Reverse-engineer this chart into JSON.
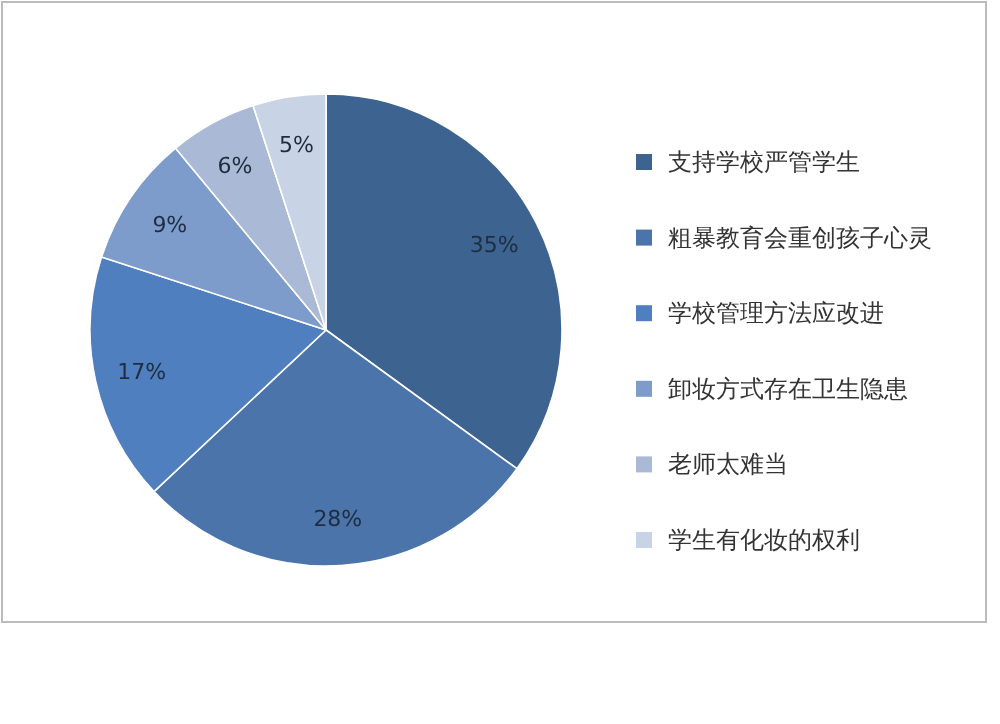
{
  "chart_data": {
    "type": "pie",
    "categories": [
      "支持学校严管学生",
      "粗暴教育会重创孩子心灵",
      "学校管理方法应改进",
      "卸妆方式存在卫生隐患",
      "老师太难当",
      "学生有化妆的权利"
    ],
    "values": [
      35,
      28,
      17,
      9,
      6,
      5
    ],
    "colors": [
      "#3d6391",
      "#4a74aa",
      "#4f7fbf",
      "#7d9ccb",
      "#a9b9d6",
      "#c9d3e6"
    ],
    "value_labels": [
      "35%",
      "28%",
      "17%",
      "9%",
      "6%",
      "5%"
    ],
    "legend": "right"
  }
}
